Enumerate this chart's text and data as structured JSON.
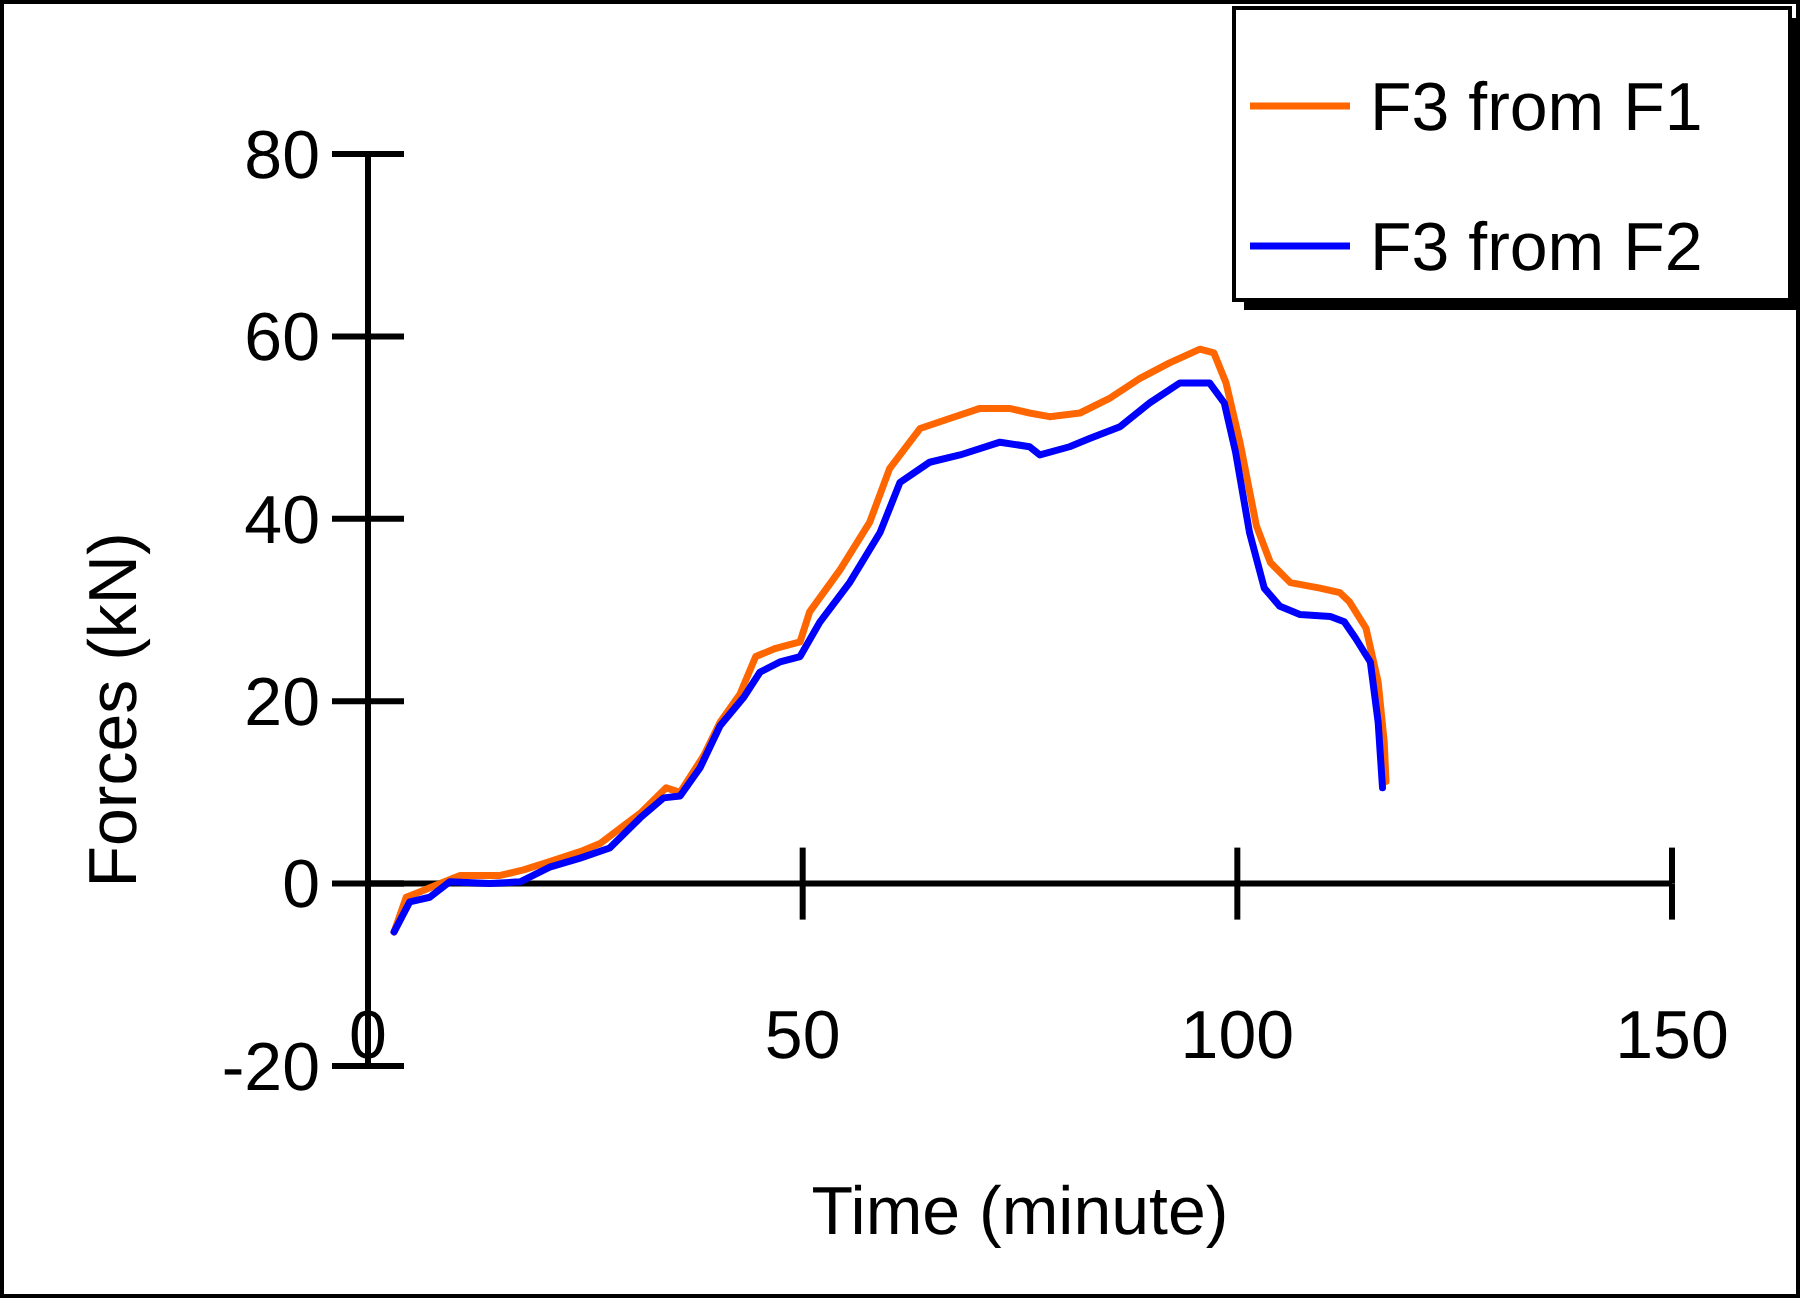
{
  "chart_data": {
    "type": "line",
    "xlabel": "Time (minute)",
    "ylabel": "Forces (kN)",
    "xlim": [
      0,
      150
    ],
    "xticks": [
      0,
      50,
      100,
      150
    ],
    "ylim": [
      -20,
      80
    ],
    "yticks": [
      -20,
      0,
      20,
      40,
      60,
      80
    ],
    "grid": false,
    "legend": "top right",
    "marker": "none",
    "line_style": "solid",
    "series": [
      {
        "name": "F3 from F1",
        "color": "#ff6600",
        "x": [
          3.0,
          4.4,
          6,
          8.3,
          10.6,
          15.2,
          17.9,
          20.9,
          24.4,
          26.7,
          31.3,
          34.3,
          35.9,
          38.6,
          40.5,
          42.8,
          44.6,
          46.9,
          49.7,
          50.8,
          54.3,
          57.7,
          60,
          63.5,
          66.9,
          70.4,
          73.8,
          76.1,
          78.4,
          81.9,
          85.3,
          88.8,
          92.2,
          95.7,
          97.3,
          98.7,
          100.3,
          102.2,
          103.8,
          106.1,
          109.5,
          111.8,
          112.9,
          114.8,
          116.2,
          116.9,
          117.1
        ],
        "values": [
          -5.3,
          -1.5,
          -0.9,
          0,
          0.9,
          0.9,
          1.5,
          2.4,
          3.5,
          4.4,
          7.7,
          10.5,
          10,
          14,
          17.7,
          20.8,
          24.9,
          25.8,
          26.5,
          29.8,
          34.4,
          39.6,
          45.5,
          49.9,
          51,
          52.1,
          52.1,
          51.6,
          51.2,
          51.6,
          53.2,
          55.4,
          57.1,
          58.6,
          58.2,
          54.9,
          48.4,
          39.2,
          35.2,
          33,
          32.4,
          31.9,
          30.9,
          28,
          22.1,
          15.5,
          11.2
        ]
      },
      {
        "name": "F3 from F2",
        "color": "#0000ff",
        "x": [
          3.0,
          4.8,
          7.1,
          9.4,
          14,
          17.5,
          20.9,
          24.4,
          27.8,
          31.3,
          34,
          35.9,
          38.2,
          40.5,
          43.2,
          45.1,
          47.4,
          49.7,
          52,
          55.4,
          58.9,
          61.2,
          64.6,
          68.1,
          72.7,
          76.1,
          77.3,
          80.7,
          83,
          86.5,
          89.9,
          93.4,
          96.8,
          98.5,
          99.8,
          101.4,
          103.1,
          104.9,
          107.2,
          110.7,
          112.3,
          113.6,
          115.3,
          116.2,
          116.7
        ],
        "values": [
          -5.3,
          -2,
          -1.5,
          0.2,
          0,
          0.2,
          1.8,
          2.8,
          3.9,
          7.2,
          9.4,
          9.6,
          12.7,
          17.3,
          20.4,
          23.2,
          24.3,
          24.9,
          28.7,
          33,
          38.5,
          44,
          46.2,
          47,
          48.4,
          47.9,
          47,
          47.9,
          48.8,
          50.1,
          52.7,
          54.9,
          54.9,
          52.7,
          47.3,
          38.5,
          32.4,
          30.4,
          29.5,
          29.3,
          28.7,
          26.9,
          24.3,
          17.7,
          10.5
        ]
      }
    ]
  }
}
